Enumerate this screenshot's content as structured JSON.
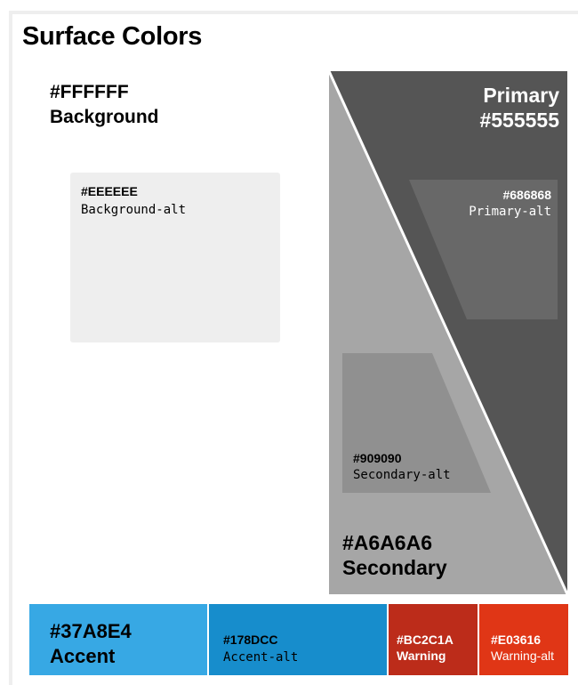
{
  "title": "Surface Colors",
  "background": {
    "hex": "#FFFFFF",
    "name": "Background",
    "color": "#ffffff"
  },
  "background_alt": {
    "hex": "#EEEEEE",
    "name": "Background-alt",
    "color": "#eeeeee"
  },
  "primary": {
    "hex": "#555555",
    "name": "Primary",
    "color": "#555555"
  },
  "primary_alt": {
    "hex": "#686868",
    "name": "Primary-alt",
    "color": "#686868"
  },
  "secondary": {
    "hex": "#A6A6A6",
    "name": "Secondary",
    "color": "#a6a6a6"
  },
  "secondary_alt": {
    "hex": "#909090",
    "name": "Secondary-alt",
    "color": "#909090"
  },
  "accent": {
    "hex": "#37A8E4",
    "name": "Accent",
    "color": "#37a8e4"
  },
  "accent_alt": {
    "hex": "#178DCC",
    "name": "Accent-alt",
    "color": "#178dcc"
  },
  "warning": {
    "hex": "#BC2C1A",
    "name": "Warning",
    "color": "#bc2c1a"
  },
  "warning_alt": {
    "hex": "#E03616",
    "name": "Warning-alt",
    "color": "#e03616"
  }
}
